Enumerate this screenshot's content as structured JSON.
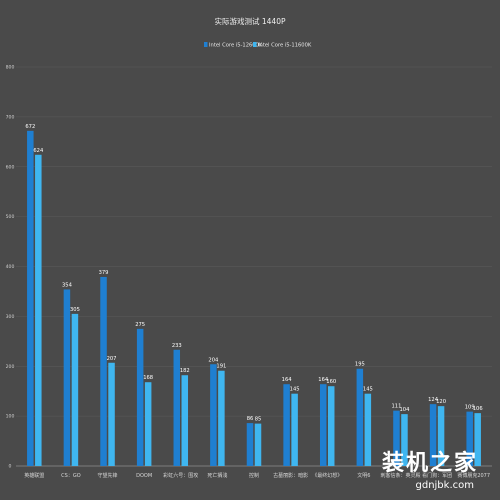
{
  "chart_data": {
    "type": "bar",
    "title": "实际游戏测试 1440P",
    "categories": [
      "英雄联盟",
      "CS：GO",
      "守望先锋",
      "DOOM",
      "彩虹六号：围攻",
      "死亡搁浅",
      "控制",
      "古墓丽影：暗影",
      "《最终幻想》",
      "文明6",
      "刺客信条：英灵殿",
      "看门狗：军团",
      "赛博朋克2077"
    ],
    "series": [
      {
        "name": "Intel Core i5-12600K",
        "color": "#1f7fd1",
        "values": [
          672,
          354,
          379,
          275,
          233,
          204,
          86,
          164,
          164,
          195,
          111,
          124,
          109
        ]
      },
      {
        "name": "Intel Core i5-11600K",
        "color": "#3fb6f0",
        "values": [
          624,
          305,
          207,
          168,
          182,
          191,
          85,
          145,
          160,
          145,
          104,
          120,
          106
        ]
      }
    ],
    "yticks": [
      0,
      100,
      200,
      300,
      400,
      500,
      600,
      700,
      800
    ],
    "ylim": [
      0,
      800
    ],
    "grid": true,
    "legend": "top-center",
    "xlabel": "",
    "ylabel": ""
  },
  "watermark": {
    "cn": "装机之家",
    "en": "gdnjbk.com"
  }
}
